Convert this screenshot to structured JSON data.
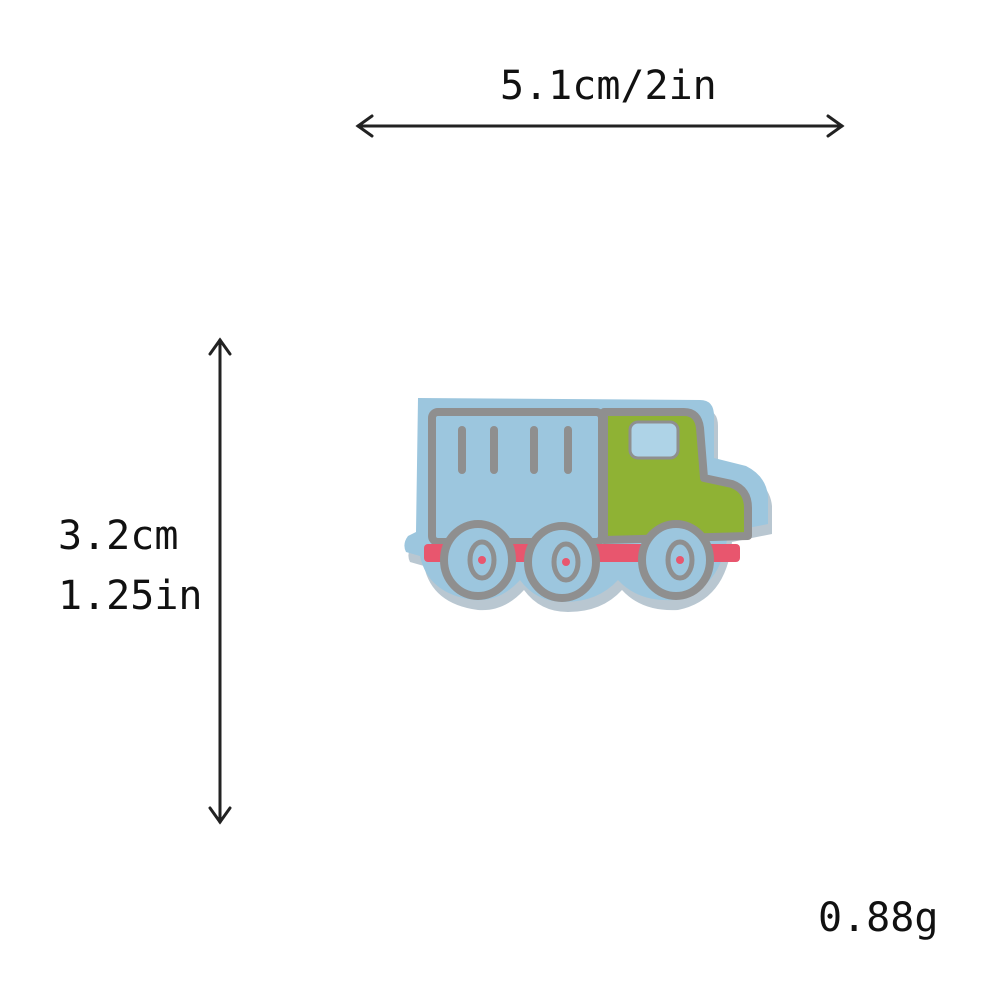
{
  "measurements": {
    "width": "5.1cm/2in",
    "height_cm": "3.2cm",
    "height_in": "1.25in",
    "weight": "0.88g"
  },
  "product": {
    "subject": "truck-patch-icon",
    "colors": {
      "fabric": "#9cc6de",
      "outline": "#8f8f8f",
      "cab": "#8fb234",
      "window": "#aed3e7",
      "trim": "#e8566e",
      "shadow": "#6f8ca0"
    }
  }
}
